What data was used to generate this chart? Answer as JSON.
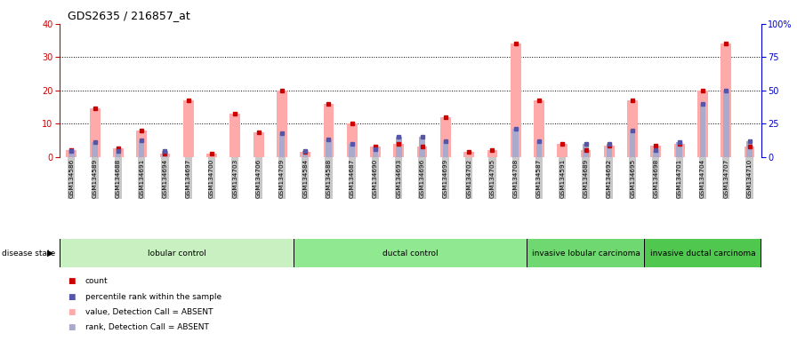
{
  "title": "GDS2635 / 216857_at",
  "samples": [
    "GSM134586",
    "GSM134589",
    "GSM134688",
    "GSM134691",
    "GSM134694",
    "GSM134697",
    "GSM134700",
    "GSM134703",
    "GSM134706",
    "GSM134709",
    "GSM134584",
    "GSM134588",
    "GSM134687",
    "GSM134690",
    "GSM134693",
    "GSM134696",
    "GSM134699",
    "GSM134702",
    "GSM134705",
    "GSM134708",
    "GSM134587",
    "GSM134591",
    "GSM134689",
    "GSM134692",
    "GSM134695",
    "GSM134698",
    "GSM134701",
    "GSM134704",
    "GSM134707",
    "GSM134710"
  ],
  "count_values": [
    2,
    14.5,
    2.5,
    8,
    1,
    17,
    1,
    13,
    7.5,
    20,
    1.5,
    16,
    10,
    3,
    4,
    3,
    12,
    1.5,
    2,
    34,
    17,
    4,
    2,
    3.5,
    17,
    3.5,
    4,
    20,
    34,
    3
  ],
  "rank_values": [
    4.5,
    11,
    4.5,
    12.5,
    4.5,
    0,
    0,
    0,
    0,
    18,
    4.5,
    13,
    10,
    6,
    15,
    15,
    12,
    0,
    0,
    21,
    12,
    0,
    9.5,
    10,
    20,
    5,
    11,
    40,
    50,
    12
  ],
  "groups": [
    {
      "label": "lobular control",
      "start": 0,
      "end": 10,
      "color": "#c8f0c0"
    },
    {
      "label": "ductal control",
      "start": 10,
      "end": 20,
      "color": "#90e890"
    },
    {
      "label": "invasive lobular carcinoma",
      "start": 20,
      "end": 25,
      "color": "#70d870"
    },
    {
      "label": "invasive ductal carcinoma",
      "start": 25,
      "end": 30,
      "color": "#50c850"
    }
  ],
  "left_ylim": [
    0,
    40
  ],
  "right_ylim": [
    0,
    100
  ],
  "left_yticks": [
    0,
    10,
    20,
    30,
    40
  ],
  "right_yticks": [
    0,
    25,
    50,
    75,
    100
  ],
  "right_yticklabels": [
    "0",
    "25",
    "50",
    "75",
    "100%"
  ],
  "left_ycolor": "#cc0000",
  "right_ycolor": "#0000cc",
  "count_color": "#ffaaaa",
  "rank_color": "#aaaacc",
  "count_marker_color": "#cc0000",
  "rank_marker_color": "#5555aa",
  "bg_color": "#ffffff",
  "grid_color": "#000000",
  "xticklabel_bg": "#c8c8c8",
  "legend_items": [
    {
      "label": "count",
      "color": "#cc0000"
    },
    {
      "label": "percentile rank within the sample",
      "color": "#5555aa"
    },
    {
      "label": "value, Detection Call = ABSENT",
      "color": "#ffaaaa"
    },
    {
      "label": "rank, Detection Call = ABSENT",
      "color": "#aaaacc"
    }
  ]
}
